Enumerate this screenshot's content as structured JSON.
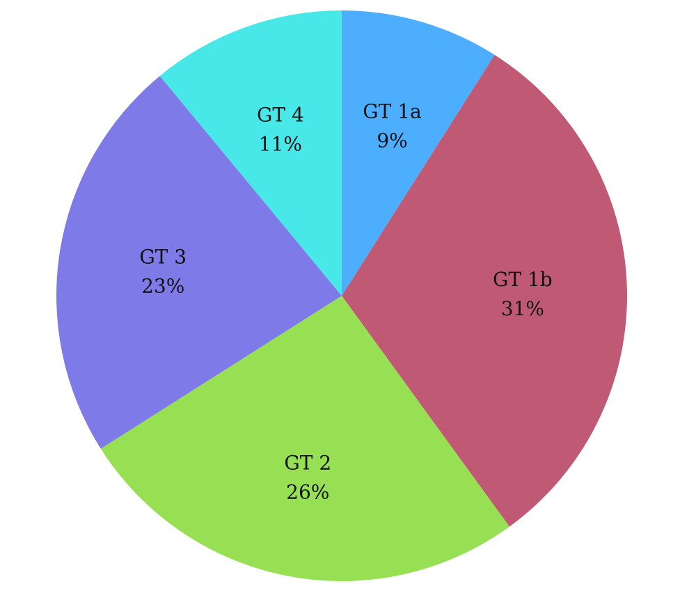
{
  "chart_data": {
    "type": "pie",
    "title": "",
    "start": "12 o'clock",
    "direction": "clockwise",
    "legend": "none",
    "slices": [
      {
        "name": "GT 1a",
        "value": 9,
        "label": "9%",
        "color": "#4DAEFD"
      },
      {
        "name": "GT 1b",
        "value": 31,
        "label": "31%",
        "color": "#C05A74"
      },
      {
        "name": "GT 2",
        "value": 26,
        "label": "26%",
        "color": "#98E053"
      },
      {
        "name": "GT 3",
        "value": 23,
        "label": "23%",
        "color": "#7E7AE8"
      },
      {
        "name": "GT 4",
        "value": 11,
        "label": "11%",
        "color": "#48E8E8"
      }
    ]
  }
}
